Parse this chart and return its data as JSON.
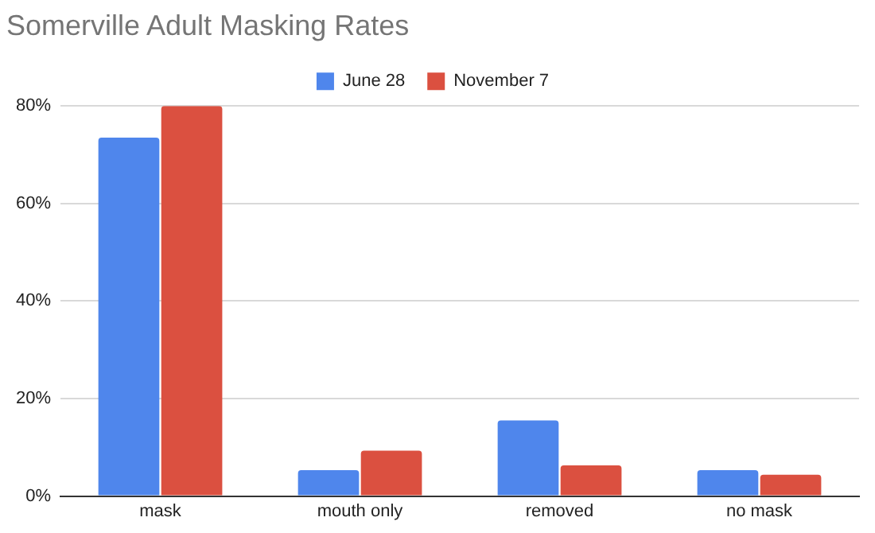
{
  "chart_data": {
    "type": "bar",
    "title": "Somerville Adult Masking Rates",
    "categories": [
      "mask",
      "mouth only",
      "removed",
      "no mask"
    ],
    "series": [
      {
        "name": "June 28",
        "color": "#4f86ec",
        "values": [
          73.5,
          5.3,
          15.5,
          5.3
        ]
      },
      {
        "name": "November 7",
        "color": "#db5040",
        "values": [
          80,
          9.3,
          6.3,
          4.4
        ]
      }
    ],
    "ylim": [
      0,
      80
    ],
    "yticks": [
      {
        "value": 0,
        "label": "0%"
      },
      {
        "value": 20,
        "label": "20%"
      },
      {
        "value": 40,
        "label": "40%"
      },
      {
        "value": 60,
        "label": "60%"
      },
      {
        "value": 80,
        "label": "80%"
      }
    ],
    "grid": "y",
    "legend": "top"
  }
}
